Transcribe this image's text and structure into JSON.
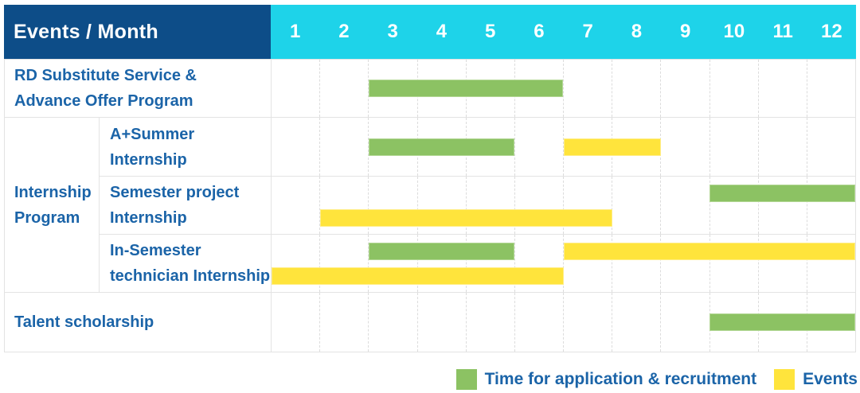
{
  "header": {
    "label": "Events / Month",
    "months": [
      "1",
      "2",
      "3",
      "4",
      "5",
      "6",
      "7",
      "8",
      "9",
      "10",
      "11",
      "12"
    ]
  },
  "colors": {
    "header_bg": "#0d4d88",
    "month_strip_bg": "#1ed3e9",
    "text_blue": "#1b64a8",
    "green": "#8cc263",
    "yellow": "#ffe43c",
    "gridline": "#e3e3e3"
  },
  "legend": {
    "items": [
      {
        "key": "green",
        "label": "Time for application & recruitment",
        "color": "#8cc263"
      },
      {
        "key": "yellow",
        "label": "Events",
        "color": "#ffe43c"
      }
    ]
  },
  "chart_data": {
    "type": "gantt",
    "x": {
      "unit": "month",
      "ticks": [
        1,
        2,
        3,
        4,
        5,
        6,
        7,
        8,
        9,
        10,
        11,
        12
      ],
      "range": [
        1,
        12
      ]
    },
    "series_legend": {
      "green": "Time for application & recruitment",
      "yellow": "Events"
    },
    "group": {
      "label": "Internship Program",
      "label_lines": [
        "Internship",
        "Program"
      ],
      "spans_rows": [
        1,
        2,
        3
      ]
    },
    "rows": [
      {
        "label": "RD Substitute Service & Advance Offer Program",
        "label_lines": [
          "RD Substitute Service &",
          "Advance Offer Program"
        ],
        "group": null,
        "lines": [
          [
            {
              "series": "green",
              "start_month": 3,
              "end_month": 6
            }
          ]
        ]
      },
      {
        "label": "A+Summer Internship",
        "label_lines": [
          "A+Summer",
          "Internship"
        ],
        "group": "Internship Program",
        "lines": [
          [
            {
              "series": "green",
              "start_month": 3,
              "end_month": 5
            },
            {
              "series": "yellow",
              "start_month": 7,
              "end_month": 8
            }
          ]
        ]
      },
      {
        "label": "Semester project Internship",
        "label_lines": [
          "Semester project",
          "Internship"
        ],
        "group": "Internship Program",
        "lines": [
          [
            {
              "series": "green",
              "start_month": 10,
              "end_month": 12
            }
          ],
          [
            {
              "series": "yellow",
              "start_month": 2,
              "end_month": 7
            }
          ]
        ]
      },
      {
        "label": "In-Semester technician Internship",
        "label_lines": [
          "In-Semester",
          "technician Internship"
        ],
        "group": "Internship Program",
        "lines": [
          [
            {
              "series": "green",
              "start_month": 3,
              "end_month": 5
            },
            {
              "series": "yellow",
              "start_month": 7,
              "end_month": 12
            }
          ],
          [
            {
              "series": "yellow",
              "start_month": 1,
              "end_month": 6
            }
          ]
        ]
      },
      {
        "label": "Talent scholarship",
        "label_lines": [
          "Talent scholarship"
        ],
        "group": null,
        "lines": [
          [
            {
              "series": "green",
              "start_month": 10,
              "end_month": 12
            }
          ]
        ]
      }
    ]
  }
}
